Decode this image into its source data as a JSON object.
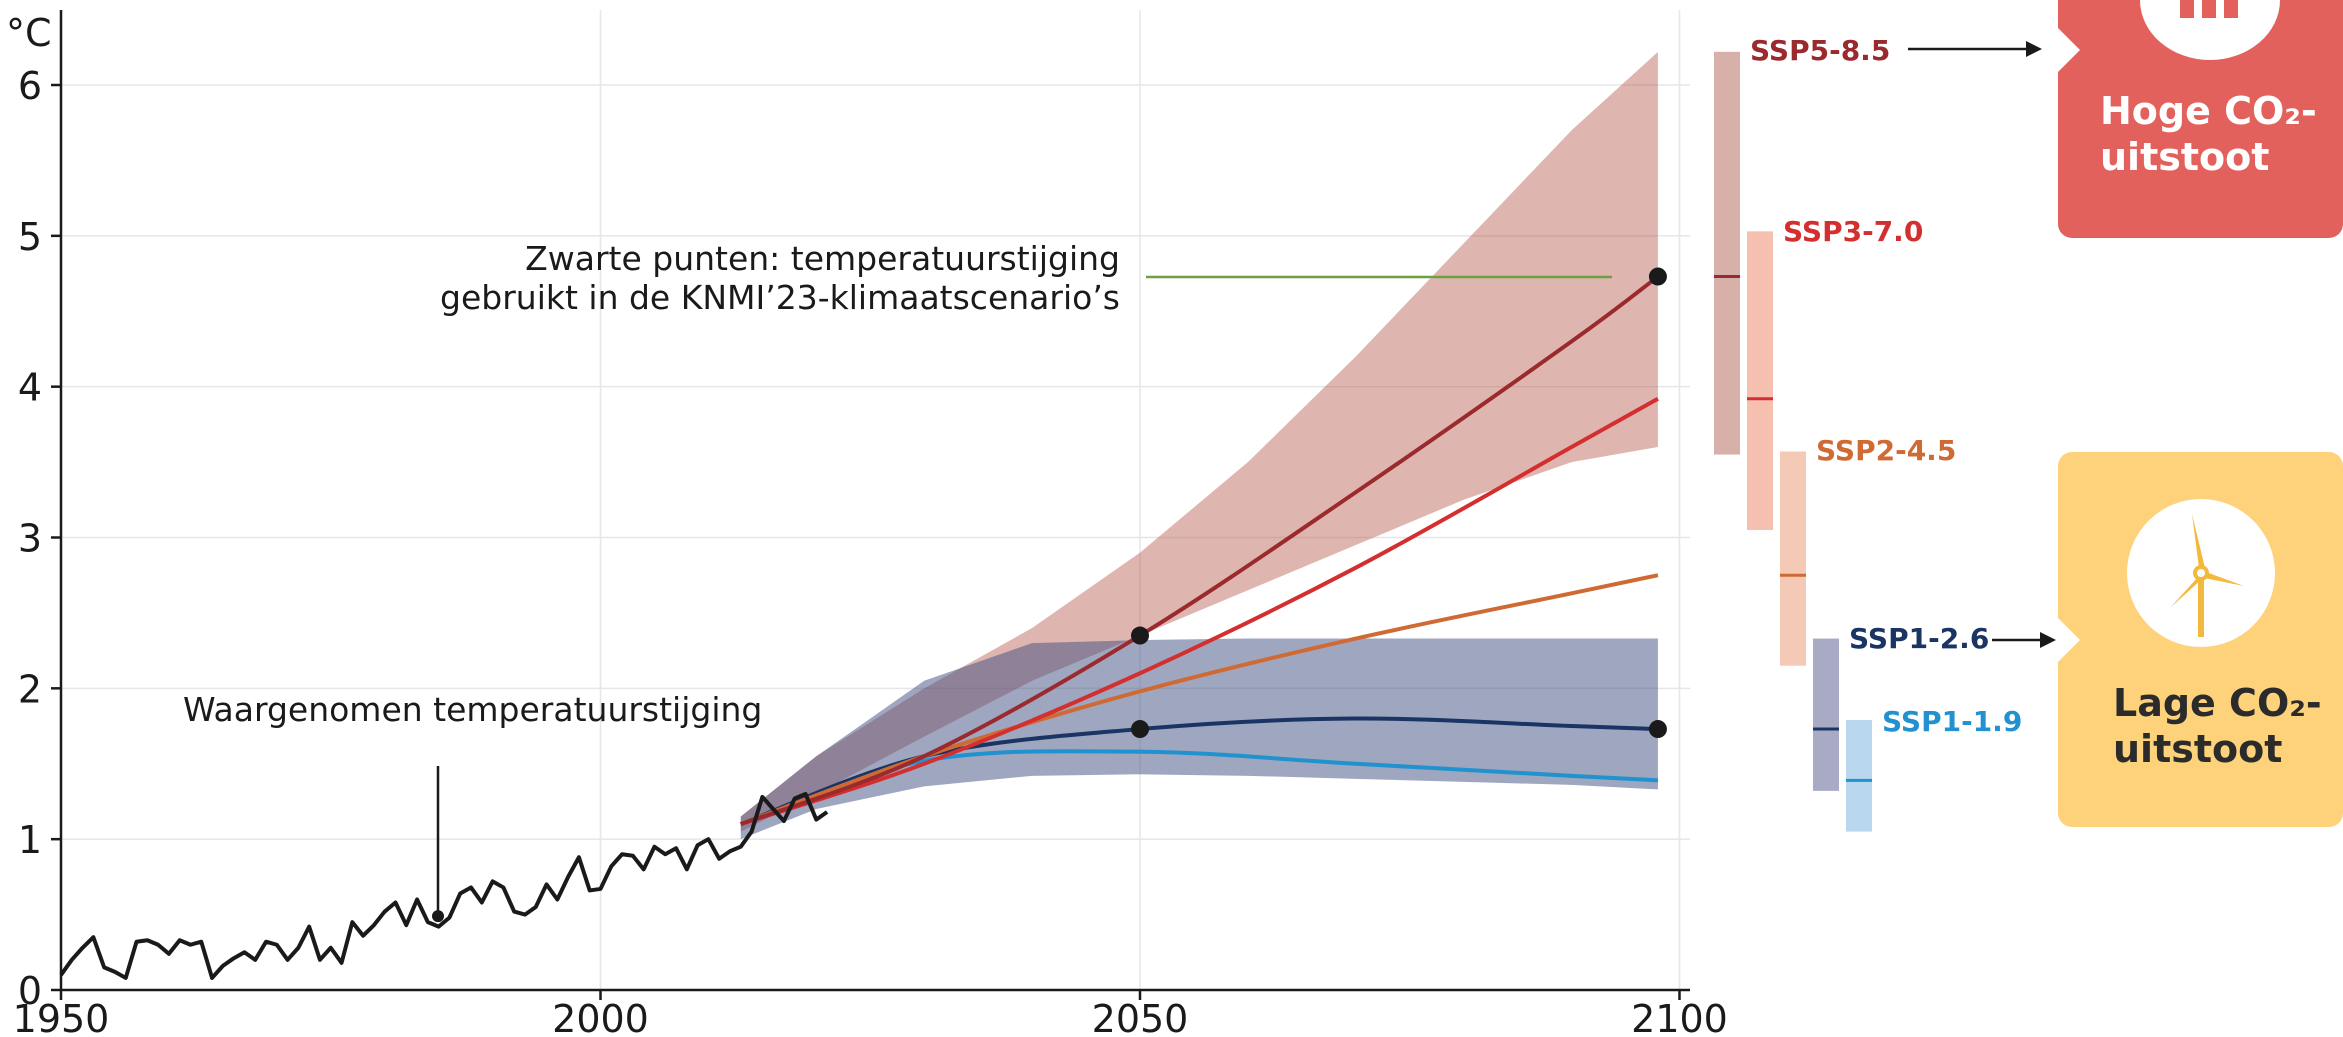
{
  "chart_data": {
    "type": "line",
    "ylabel": "°C",
    "xlim": [
      1948,
      2102
    ],
    "ylim": [
      0,
      6.5
    ],
    "xticks": [
      1950,
      2000,
      2050,
      2100
    ],
    "yticks": [
      0,
      1,
      2,
      3,
      4,
      5,
      6
    ],
    "grid": true,
    "observed": {
      "name": "Waargenomen temperatuurstijging",
      "x": [
        1950,
        1951,
        1952,
        1953,
        1954,
        1955,
        1956,
        1957,
        1958,
        1959,
        1960,
        1961,
        1962,
        1963,
        1964,
        1965,
        1966,
        1967,
        1968,
        1969,
        1970,
        1971,
        1972,
        1973,
        1974,
        1975,
        1976,
        1977,
        1978,
        1979,
        1980,
        1981,
        1982,
        1983,
        1984,
        1985,
        1986,
        1987,
        1988,
        1989,
        1990,
        1991,
        1992,
        1993,
        1994,
        1995,
        1996,
        1997,
        1998,
        1999,
        2000,
        2001,
        2002,
        2003,
        2004,
        2005,
        2006,
        2007,
        2008,
        2009,
        2010,
        2011,
        2012,
        2013,
        2014,
        2015,
        2016,
        2017,
        2018,
        2019,
        2020,
        2021
      ],
      "y": [
        0.1,
        0.2,
        0.28,
        0.35,
        0.15,
        0.12,
        0.08,
        0.32,
        0.33,
        0.3,
        0.24,
        0.33,
        0.3,
        0.32,
        0.08,
        0.16,
        0.21,
        0.25,
        0.2,
        0.32,
        0.3,
        0.2,
        0.28,
        0.42,
        0.2,
        0.28,
        0.18,
        0.45,
        0.36,
        0.43,
        0.52,
        0.58,
        0.43,
        0.6,
        0.45,
        0.42,
        0.48,
        0.64,
        0.68,
        0.58,
        0.72,
        0.68,
        0.52,
        0.5,
        0.55,
        0.7,
        0.6,
        0.75,
        0.88,
        0.66,
        0.67,
        0.82,
        0.9,
        0.89,
        0.8,
        0.95,
        0.9,
        0.94,
        0.8,
        0.96,
        1.0,
        0.87,
        0.92,
        0.95,
        1.05,
        1.28,
        1.2,
        1.12,
        1.27,
        1.3,
        1.13,
        1.18
      ]
    },
    "scenarios": [
      {
        "name": "SSP5-8.5",
        "color": "#9b2a2e",
        "x": [
          2013,
          2030,
          2050,
          2070,
          2090,
          2098
        ],
        "y": [
          1.1,
          1.55,
          2.35,
          3.3,
          4.3,
          4.73
        ],
        "range": [
          3.55,
          6.22
        ],
        "median": 4.73
      },
      {
        "name": "SSP3-7.0",
        "color": "#d42f2f",
        "x": [
          2013,
          2030,
          2050,
          2070,
          2090,
          2098
        ],
        "y": [
          1.1,
          1.5,
          2.1,
          2.8,
          3.6,
          3.92
        ],
        "range": [
          3.05,
          5.03
        ],
        "median": 3.92
      },
      {
        "name": "SSP2-4.5",
        "color": "#cf6a33",
        "x": [
          2013,
          2030,
          2050,
          2070,
          2090,
          2098
        ],
        "y": [
          1.1,
          1.55,
          1.98,
          2.33,
          2.63,
          2.75
        ],
        "range": [
          2.15,
          3.57
        ],
        "median": 2.75
      },
      {
        "name": "SSP1-2.6",
        "color": "#1a3463",
        "x": [
          2013,
          2030,
          2050,
          2070,
          2090,
          2098
        ],
        "y": [
          1.1,
          1.55,
          1.73,
          1.8,
          1.75,
          1.73
        ],
        "range": [
          1.32,
          2.33
        ],
        "median": 1.73
      },
      {
        "name": "SSP1-1.9",
        "color": "#2191cf",
        "x": [
          2013,
          2030,
          2050,
          2070,
          2090,
          2098
        ],
        "y": [
          1.1,
          1.52,
          1.58,
          1.5,
          1.42,
          1.39
        ],
        "range": [
          1.05,
          1.79
        ],
        "median": 1.39
      }
    ],
    "bands": [
      {
        "name": "high",
        "color": "#b85a4f",
        "opacity": 0.45,
        "x": [
          2013,
          2020,
          2030,
          2040,
          2050,
          2060,
          2070,
          2080,
          2090,
          2098
        ],
        "low": [
          1.05,
          1.3,
          1.68,
          2.05,
          2.35,
          2.65,
          2.95,
          3.25,
          3.5,
          3.6
        ],
        "high": [
          1.15,
          1.55,
          2.0,
          2.4,
          2.9,
          3.5,
          4.2,
          4.95,
          5.7,
          6.22
        ]
      },
      {
        "name": "low",
        "color": "#3f4d80",
        "opacity": 0.5,
        "x": [
          2013,
          2020,
          2030,
          2040,
          2050,
          2060,
          2070,
          2080,
          2090,
          2098
        ],
        "low": [
          1.0,
          1.2,
          1.35,
          1.42,
          1.43,
          1.42,
          1.4,
          1.38,
          1.36,
          1.33
        ],
        "high": [
          1.15,
          1.55,
          2.05,
          2.3,
          2.32,
          2.33,
          2.33,
          2.33,
          2.33,
          2.33
        ]
      }
    ],
    "knmi_points": [
      {
        "x": 2050,
        "y": 2.35
      },
      {
        "x": 2050,
        "y": 1.73
      },
      {
        "x": 2098,
        "y": 4.73
      },
      {
        "x": 2098,
        "y": 1.73
      }
    ],
    "observed_marker": {
      "x": 1983,
      "y": 0.49
    },
    "annotations": {
      "observed_label": "Waargenomen temperatuurstijging",
      "points_label_line1": "Zwarte punten: temperatuurstijging",
      "points_label_line2": "gebruikt in de KNMI’23-klimaatscenario’s"
    }
  },
  "cards": {
    "high": {
      "line1": "Hoge CO₂-",
      "line2": "uitstoot",
      "color": "#e2615c",
      "icon": "factory-icon"
    },
    "low": {
      "line1": "Lage CO₂-",
      "line2": "uitstoot",
      "color": "#fdd27b",
      "icon": "wind-turbine-icon"
    }
  },
  "colors": {
    "axis": "#1a1a1a",
    "grid": "#e6e6e6",
    "annotation_line": "#6ea041"
  }
}
